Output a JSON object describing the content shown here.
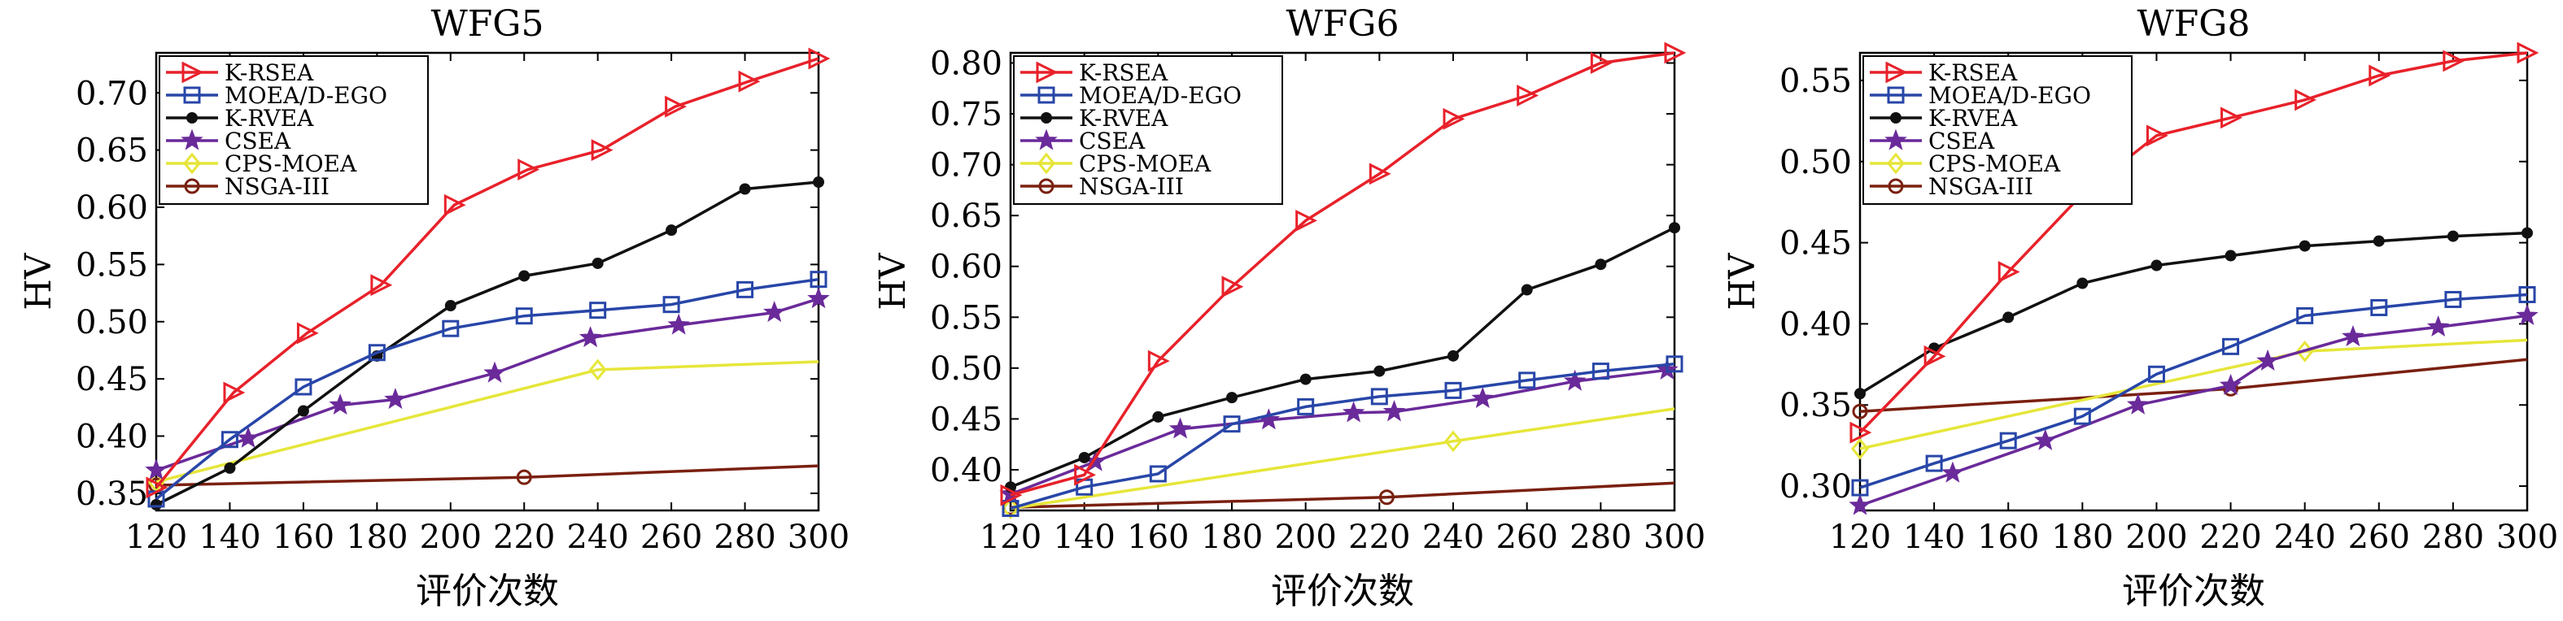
{
  "chart_data": [
    {
      "type": "line",
      "title": "WFG5",
      "xlabel": "评价次数",
      "ylabel": "HV",
      "xlim": [
        120,
        300
      ],
      "ylim": [
        0.335,
        0.735
      ],
      "xticks": [
        120,
        140,
        160,
        180,
        200,
        220,
        240,
        260,
        280,
        300
      ],
      "yticks": [
        0.35,
        0.4,
        0.45,
        0.5,
        0.55,
        0.6,
        0.65,
        0.7
      ],
      "ytick_labels": [
        "0.35",
        "0.40",
        "0.45",
        "0.50",
        "0.55",
        "0.60",
        "0.65",
        "0.70"
      ],
      "legend_position": "top-left",
      "series": [
        {
          "name": "K-RSEA",
          "color": "#e8212a",
          "marker": "triangle-right",
          "x": [
            120,
            141,
            161,
            181,
            201,
            221,
            241,
            261,
            281,
            300
          ],
          "y": [
            0.355,
            0.438,
            0.49,
            0.532,
            0.602,
            0.633,
            0.65,
            0.688,
            0.71,
            0.73
          ]
        },
        {
          "name": "MOEA/D-EGO",
          "color": "#2846a8",
          "marker": "square",
          "x": [
            120,
            140,
            160,
            180,
            200,
            220,
            240,
            260,
            280,
            300
          ],
          "y": [
            0.345,
            0.397,
            0.443,
            0.473,
            0.494,
            0.505,
            0.51,
            0.515,
            0.528,
            0.537
          ]
        },
        {
          "name": "K-RVEA",
          "color": "#111111",
          "marker": "dot",
          "x": [
            120,
            140,
            160,
            180,
            200,
            220,
            240,
            260,
            280,
            300
          ],
          "y": [
            0.34,
            0.372,
            0.422,
            0.47,
            0.514,
            0.54,
            0.551,
            0.58,
            0.616,
            0.622
          ]
        },
        {
          "name": "CSEA",
          "color": "#6a2a9a",
          "marker": "star",
          "x": [
            120,
            145,
            170,
            185,
            212,
            238,
            262,
            288,
            300
          ],
          "y": [
            0.37,
            0.398,
            0.427,
            0.432,
            0.455,
            0.486,
            0.497,
            0.508,
            0.52
          ]
        },
        {
          "name": "CPS-MOEA",
          "color": "#e6e63a",
          "marker": "diamond",
          "x": [
            120,
            240,
            300
          ],
          "y": [
            0.36,
            0.458,
            0.465
          ]
        },
        {
          "name": "NSGA-III",
          "color": "#7a2010",
          "marker": "circle",
          "x": [
            120,
            220,
            300
          ],
          "y": [
            0.357,
            0.364,
            0.374
          ]
        }
      ]
    },
    {
      "type": "line",
      "title": "WFG6",
      "xlabel": "评价次数",
      "ylabel": "HV",
      "xlim": [
        120,
        300
      ],
      "ylim": [
        0.36,
        0.81
      ],
      "xticks": [
        120,
        140,
        160,
        180,
        200,
        220,
        240,
        260,
        280,
        300
      ],
      "yticks": [
        0.4,
        0.45,
        0.5,
        0.55,
        0.6,
        0.65,
        0.7,
        0.75,
        0.8
      ],
      "ytick_labels": [
        "0.40",
        "0.45",
        "0.50",
        "0.55",
        "0.60",
        "0.65",
        "0.70",
        "0.75",
        "0.80"
      ],
      "legend_position": "top-left",
      "series": [
        {
          "name": "K-RSEA",
          "color": "#e8212a",
          "marker": "triangle-right",
          "x": [
            120,
            140,
            160,
            180,
            200,
            220,
            240,
            260,
            280,
            300
          ],
          "y": [
            0.375,
            0.395,
            0.507,
            0.58,
            0.645,
            0.691,
            0.745,
            0.768,
            0.8,
            0.81
          ]
        },
        {
          "name": "MOEA/D-EGO",
          "color": "#2846a8",
          "marker": "square",
          "x": [
            120,
            140,
            160,
            180,
            200,
            220,
            240,
            260,
            280,
            300
          ],
          "y": [
            0.362,
            0.383,
            0.396,
            0.445,
            0.462,
            0.472,
            0.478,
            0.488,
            0.497,
            0.504
          ]
        },
        {
          "name": "K-RVEA",
          "color": "#111111",
          "marker": "dot",
          "x": [
            120,
            140,
            160,
            180,
            200,
            220,
            240,
            260,
            280,
            300
          ],
          "y": [
            0.383,
            0.412,
            0.452,
            0.471,
            0.489,
            0.497,
            0.512,
            0.577,
            0.602,
            0.638
          ]
        },
        {
          "name": "CSEA",
          "color": "#6a2a9a",
          "marker": "star",
          "x": [
            120,
            143,
            166,
            190,
            213,
            224,
            248,
            273,
            298
          ],
          "y": [
            0.376,
            0.408,
            0.44,
            0.449,
            0.456,
            0.457,
            0.47,
            0.487,
            0.498
          ]
        },
        {
          "name": "CPS-MOEA",
          "color": "#e6e63a",
          "marker": "diamond",
          "x": [
            120,
            240,
            300
          ],
          "y": [
            0.362,
            0.428,
            0.46
          ]
        },
        {
          "name": "NSGA-III",
          "color": "#7a2010",
          "marker": "circle",
          "x": [
            120,
            222,
            300
          ],
          "y": [
            0.363,
            0.373,
            0.387
          ]
        }
      ]
    },
    {
      "type": "line",
      "title": "WFG8",
      "xlabel": "评价次数",
      "ylabel": "HV",
      "xlim": [
        120,
        300
      ],
      "ylim": [
        0.285,
        0.567
      ],
      "xticks": [
        120,
        140,
        160,
        180,
        200,
        220,
        240,
        260,
        280,
        300
      ],
      "yticks": [
        0.3,
        0.35,
        0.4,
        0.45,
        0.5,
        0.55
      ],
      "ytick_labels": [
        "0.30",
        "0.35",
        "0.40",
        "0.45",
        "0.50",
        "0.55"
      ],
      "legend_position": "top-left",
      "series": [
        {
          "name": "K-RSEA",
          "color": "#e8212a",
          "marker": "triangle-right",
          "x": [
            120,
            140,
            160,
            180,
            200,
            220,
            240,
            260,
            280,
            300
          ],
          "y": [
            0.333,
            0.38,
            0.432,
            0.48,
            0.516,
            0.527,
            0.538,
            0.553,
            0.562,
            0.567
          ]
        },
        {
          "name": "MOEA/D-EGO",
          "color": "#2846a8",
          "marker": "square",
          "x": [
            120,
            140,
            160,
            180,
            200,
            220,
            240,
            260,
            280,
            300
          ],
          "y": [
            0.299,
            0.314,
            0.328,
            0.343,
            0.369,
            0.386,
            0.405,
            0.41,
            0.415,
            0.418
          ]
        },
        {
          "name": "K-RVEA",
          "color": "#111111",
          "marker": "dot",
          "x": [
            120,
            140,
            160,
            180,
            200,
            220,
            240,
            260,
            280,
            300
          ],
          "y": [
            0.357,
            0.385,
            0.404,
            0.425,
            0.436,
            0.442,
            0.448,
            0.451,
            0.454,
            0.456
          ]
        },
        {
          "name": "CSEA",
          "color": "#6a2a9a",
          "marker": "star",
          "x": [
            120,
            145,
            170,
            195,
            220,
            230,
            253,
            276,
            300
          ],
          "y": [
            0.288,
            0.308,
            0.328,
            0.35,
            0.362,
            0.377,
            0.392,
            0.398,
            0.405
          ]
        },
        {
          "name": "CPS-MOEA",
          "color": "#e6e63a",
          "marker": "diamond",
          "x": [
            120,
            240,
            300
          ],
          "y": [
            0.323,
            0.383,
            0.39
          ]
        },
        {
          "name": "NSGA-III",
          "color": "#7a2010",
          "marker": "circle",
          "x": [
            120,
            220,
            300
          ],
          "y": [
            0.346,
            0.36,
            0.378
          ]
        }
      ]
    }
  ]
}
